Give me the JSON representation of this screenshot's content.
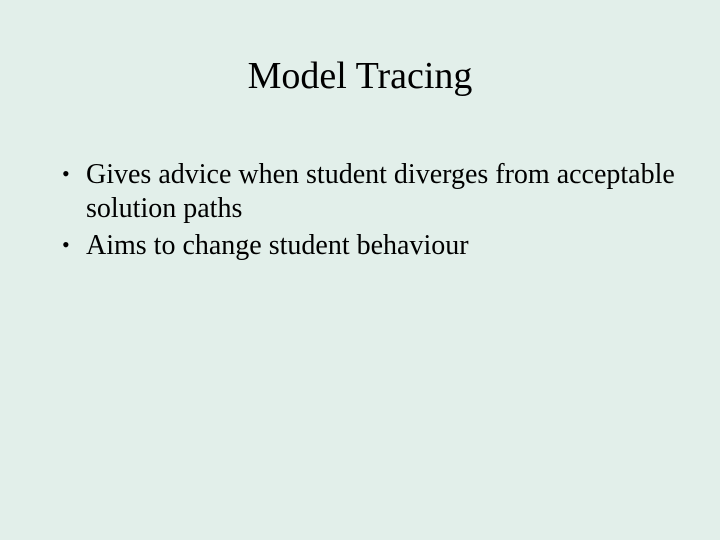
{
  "slide": {
    "background_color": "#e2efea",
    "text_color": "#000000",
    "font_family": "Times New Roman",
    "title": "Model Tracing",
    "title_fontsize": 38,
    "bullets": [
      {
        "text": "Gives advice when student diverges from acceptable solution paths"
      },
      {
        "text": "Aims to change student behaviour"
      }
    ],
    "bullet_fontsize": 28,
    "bullet_glyph": "•"
  }
}
